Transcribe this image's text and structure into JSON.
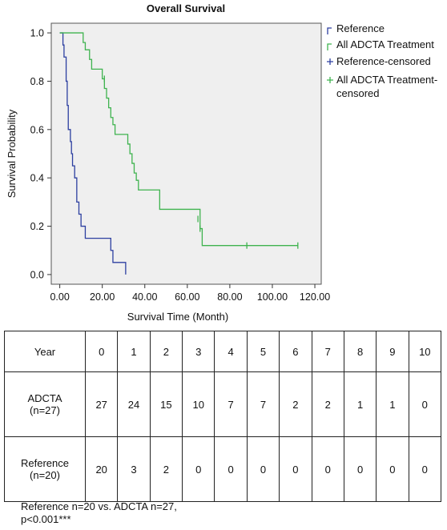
{
  "chart_data": {
    "type": "line",
    "title": "Overall Survival",
    "xlabel": "Survival Time (Month)",
    "ylabel": "Survival Probability",
    "xlim": [
      -4,
      123
    ],
    "ylim": [
      -0.04,
      1.04
    ],
    "x_ticks": [
      "0.00",
      "20.00",
      "40.00",
      "60.00",
      "80.00",
      "100.00",
      "120.00"
    ],
    "x_tick_values": [
      0,
      20,
      40,
      60,
      80,
      100,
      120
    ],
    "y_ticks": [
      "0.0",
      "0.2",
      "0.4",
      "0.6",
      "0.8",
      "1.0"
    ],
    "y_tick_values": [
      0,
      0.2,
      0.4,
      0.6,
      0.8,
      1.0
    ],
    "series": [
      {
        "name": "Reference",
        "color": "#2c3fa0",
        "steps": [
          [
            0,
            1.0
          ],
          [
            1.5,
            0.95
          ],
          [
            2,
            0.9
          ],
          [
            3,
            0.8
          ],
          [
            3.5,
            0.7
          ],
          [
            4,
            0.6
          ],
          [
            5,
            0.55
          ],
          [
            5.5,
            0.5
          ],
          [
            6,
            0.45
          ],
          [
            7,
            0.4
          ],
          [
            8,
            0.3
          ],
          [
            9,
            0.25
          ],
          [
            10,
            0.2
          ],
          [
            12,
            0.15
          ],
          [
            24,
            0.1
          ],
          [
            25,
            0.05
          ],
          [
            31,
            0.0
          ]
        ],
        "end": 31
      },
      {
        "name": "All ADCTA Treatment",
        "color": "#3fb34f",
        "steps": [
          [
            0,
            1.0
          ],
          [
            11,
            0.96
          ],
          [
            12,
            0.93
          ],
          [
            14,
            0.89
          ],
          [
            15,
            0.85
          ],
          [
            20,
            0.81
          ],
          [
            21,
            0.77
          ],
          [
            22,
            0.73
          ],
          [
            23,
            0.69
          ],
          [
            24,
            0.65
          ],
          [
            25,
            0.62
          ],
          [
            26,
            0.58
          ],
          [
            32,
            0.54
          ],
          [
            33,
            0.5
          ],
          [
            34,
            0.46
          ],
          [
            35,
            0.42
          ],
          [
            36,
            0.39
          ],
          [
            37,
            0.35
          ],
          [
            47,
            0.27
          ],
          [
            66,
            0.19
          ],
          [
            67,
            0.12
          ]
        ],
        "end": 112
      }
    ],
    "censored": [
      {
        "name": "Reference-censored",
        "points": []
      },
      {
        "name": "All ADCTA Treatment-censored",
        "points": [
          [
            21,
            0.81
          ],
          [
            65,
            0.23
          ],
          [
            66,
            0.19
          ],
          [
            88,
            0.12
          ],
          [
            112,
            0.12
          ]
        ]
      }
    ],
    "legend": {
      "placement": "right",
      "entries": [
        "Reference",
        "All ADCTA Treatment",
        "Reference-censored",
        "All ADCTA Treatment-censored"
      ]
    },
    "grid": false,
    "plot_background": "#efefef"
  },
  "legend_labels": {
    "reference": "Reference",
    "adcta": "All ADCTA Treatment",
    "ref_censored": "Reference-censored",
    "adcta_censored_line1": "All ADCTA Treatment-",
    "adcta_censored_line2": "censored"
  },
  "table": {
    "header_label": "Year",
    "years": [
      "0",
      "1",
      "2",
      "3",
      "4",
      "5",
      "6",
      "7",
      "8",
      "9",
      "10"
    ],
    "rows": [
      {
        "label_line1": "ADCTA",
        "label_line2": "(n=27)",
        "values": [
          "27",
          "24",
          "15",
          "10",
          "7",
          "7",
          "2",
          "2",
          "1",
          "1",
          "0"
        ]
      },
      {
        "label_line1": "Reference",
        "label_line2": "(n=20)",
        "values": [
          "20",
          "3",
          "2",
          "0",
          "0",
          "0",
          "0",
          "0",
          "0",
          "0",
          "0"
        ]
      }
    ]
  },
  "footnote": {
    "line1": "Reference n=20 vs. ADCTA n=27,",
    "line2": "p<0.001***"
  }
}
